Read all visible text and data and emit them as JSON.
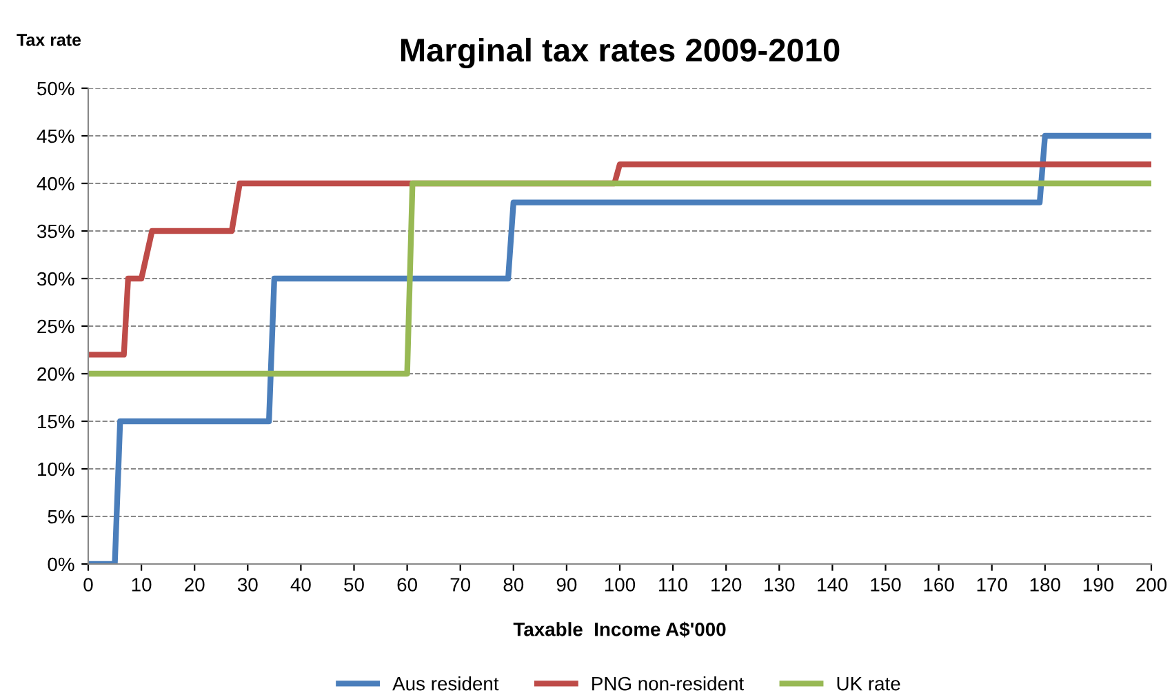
{
  "chart_data": {
    "type": "line",
    "title": "Marginal tax rates 2009-2010",
    "xlabel": "Taxable  Income A$'000",
    "ylabel": "Tax rate",
    "series": [
      {
        "name": "Aus resident",
        "color": "#4a7ebb",
        "x": [
          0,
          5,
          6,
          34,
          35,
          79,
          80,
          179,
          180,
          200
        ],
        "values": [
          0,
          0,
          15,
          15,
          30,
          30,
          38,
          38,
          45,
          45
        ]
      },
      {
        "name": "PNG non-resident",
        "color": "#be4b48",
        "x": [
          0,
          6.7,
          7.5,
          10,
          12,
          27,
          28.5,
          99,
          100,
          200
        ],
        "values": [
          22,
          22,
          30,
          30,
          35,
          35,
          40,
          40,
          42,
          42
        ]
      },
      {
        "name": "UK rate",
        "color": "#98b954",
        "x": [
          0,
          60,
          61,
          200
        ],
        "values": [
          20,
          20,
          40,
          40
        ]
      }
    ],
    "xlim": [
      0,
      200
    ],
    "xticks": [
      0,
      10,
      20,
      30,
      40,
      50,
      60,
      70,
      80,
      90,
      100,
      110,
      120,
      130,
      140,
      150,
      160,
      170,
      180,
      190,
      200
    ],
    "ylim": [
      0,
      50
    ],
    "yticks": [
      {
        "value": 0,
        "label": "0%"
      },
      {
        "value": 5,
        "label": "5%"
      },
      {
        "value": 10,
        "label": "10%"
      },
      {
        "value": 15,
        "label": "15%"
      },
      {
        "value": 20,
        "label": "20%"
      },
      {
        "value": 25,
        "label": "25%"
      },
      {
        "value": 30,
        "label": "30%"
      },
      {
        "value": 35,
        "label": "35%"
      },
      {
        "value": 40,
        "label": "40%"
      },
      {
        "value": 45,
        "label": "45%"
      },
      {
        "value": 50,
        "label": "50%"
      }
    ],
    "grid": "y",
    "legend": "bottom",
    "line_style": "solid",
    "marker": "none"
  }
}
